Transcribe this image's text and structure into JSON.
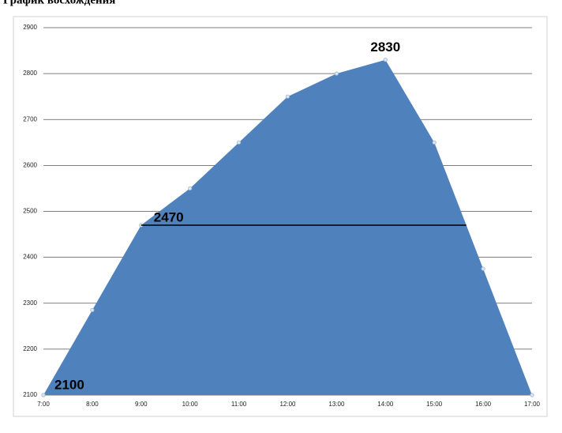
{
  "chart_data": {
    "type": "area",
    "title": "График восхождения",
    "categories": [
      "7:00",
      "8:00",
      "9:00",
      "10:00",
      "11:00",
      "12:00",
      "13:00",
      "14:00",
      "15:00",
      "16:00",
      "17:00"
    ],
    "series": [
      {
        "color": "#4f81bd",
        "values": [
          2100,
          2285,
          2470,
          2550,
          2650,
          2750,
          2800,
          2830,
          2650,
          2375,
          2100
        ]
      }
    ],
    "labeled_points": [
      0,
      2,
      7
    ],
    "ylim": [
      2100,
      2900
    ],
    "yticks": [
      2100,
      2200,
      2300,
      2400,
      2500,
      2600,
      2700,
      2800,
      2900
    ],
    "grid": true
  }
}
